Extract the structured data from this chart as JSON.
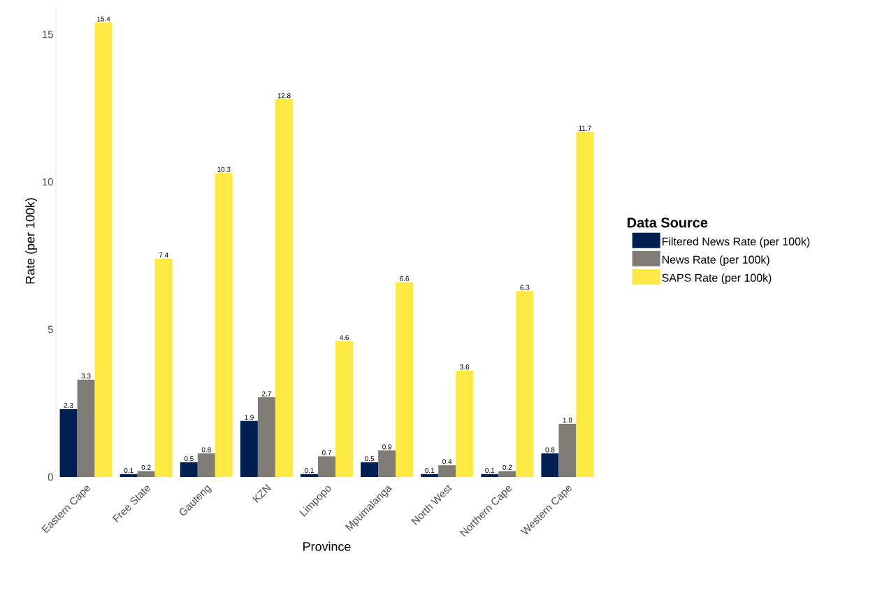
{
  "chart_data": {
    "type": "bar",
    "xlabel": "Province",
    "ylabel": "Rate (per 100k)",
    "legend_title": "Data Source",
    "categories": [
      "Eastern Cape",
      "Free State",
      "Gauteng",
      "KZN",
      "Limpopo",
      "Mpumalanga",
      "North West",
      "Northern Cape",
      "Western Cape"
    ],
    "series": [
      {
        "name": "Filtered News Rate (per 100k)",
        "color": "#002051",
        "values": [
          2.3,
          0.1,
          0.5,
          1.9,
          0.1,
          0.5,
          0.1,
          0.1,
          0.8
        ]
      },
      {
        "name": "News Rate (per 100k)",
        "color": "#7f7c75",
        "values": [
          3.3,
          0.2,
          0.8,
          2.7,
          0.7,
          0.9,
          0.4,
          0.2,
          1.8
        ]
      },
      {
        "name": "SAPS Rate (per 100k)",
        "color": "#fde945",
        "values": [
          15.4,
          7.4,
          10.3,
          12.8,
          4.6,
          6.6,
          3.6,
          6.3,
          11.7
        ]
      }
    ],
    "ylim": [
      0,
      16
    ],
    "yticks": [
      0,
      5,
      10,
      15
    ],
    "grid": false,
    "legend": "right",
    "data_labels": true
  }
}
